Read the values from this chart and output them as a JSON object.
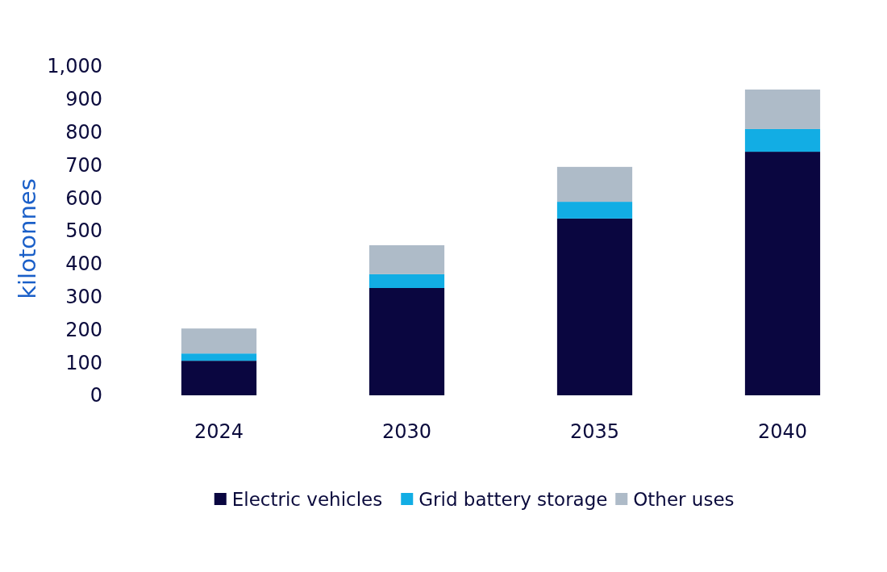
{
  "chart_data": {
    "type": "bar",
    "stacked": true,
    "ylabel": "kilotonnes",
    "categories": [
      "2024",
      "2030",
      "2035",
      "2040"
    ],
    "series": [
      {
        "name": "Electric vehicles",
        "color": "#0a0640",
        "values": [
          105,
          326,
          537,
          740
        ]
      },
      {
        "name": "Grid battery storage",
        "color": "#12ade4",
        "values": [
          22,
          42,
          51,
          69
        ]
      },
      {
        "name": "Other uses",
        "color": "#aebbc8",
        "values": [
          76,
          88,
          106,
          120
        ]
      }
    ],
    "ylim": [
      0,
      1000
    ],
    "yticks": [
      0,
      100,
      200,
      300,
      400,
      500,
      600,
      700,
      800,
      900,
      {
        "value": 1000,
        "label": "1,000"
      }
    ],
    "grid": false,
    "legend": "bottom"
  }
}
